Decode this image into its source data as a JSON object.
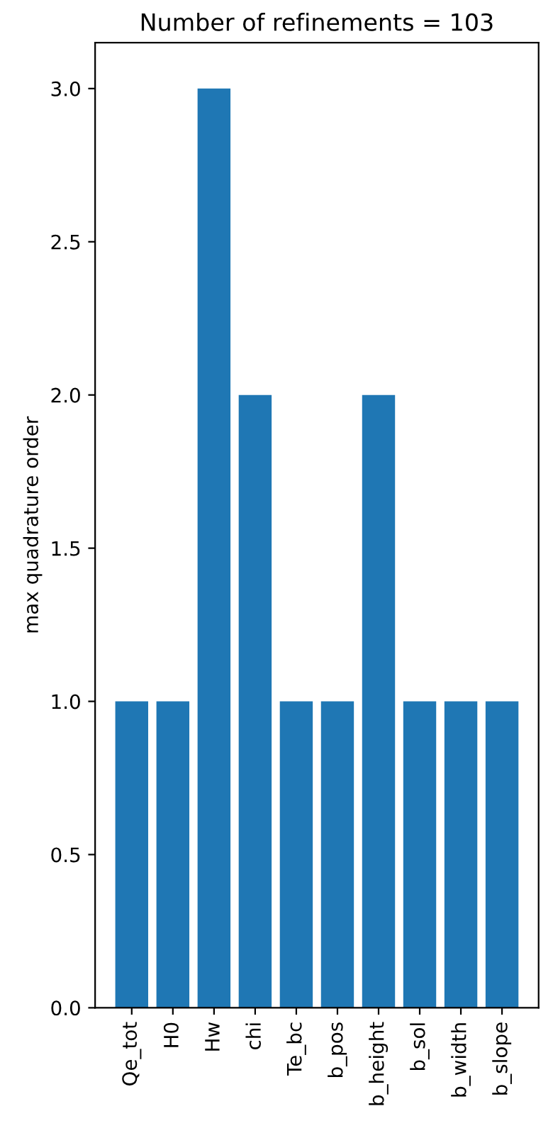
{
  "chart_data": {
    "type": "bar",
    "title": "Number of refinements = 103",
    "ylabel": "max quadrature order",
    "categories": [
      "Qe_tot",
      "H0",
      "Hw",
      "chi",
      "Te_bc",
      "b_pos",
      "b_height",
      "b_sol",
      "b_width",
      "b_slope"
    ],
    "values": [
      1,
      1,
      3,
      2,
      1,
      1,
      2,
      1,
      1,
      1
    ],
    "color": "#1f77b4",
    "ylim": [
      0,
      3.15
    ],
    "yticks": [
      {
        "value": 0,
        "label": "0.0"
      },
      {
        "value": 0.5,
        "label": "0.5"
      },
      {
        "value": 1,
        "label": "1.0"
      },
      {
        "value": 1.5,
        "label": "1.5"
      },
      {
        "value": 2,
        "label": "2.0"
      },
      {
        "value": 2.5,
        "label": "2.5"
      },
      {
        "value": 3,
        "label": "3.0"
      }
    ]
  }
}
